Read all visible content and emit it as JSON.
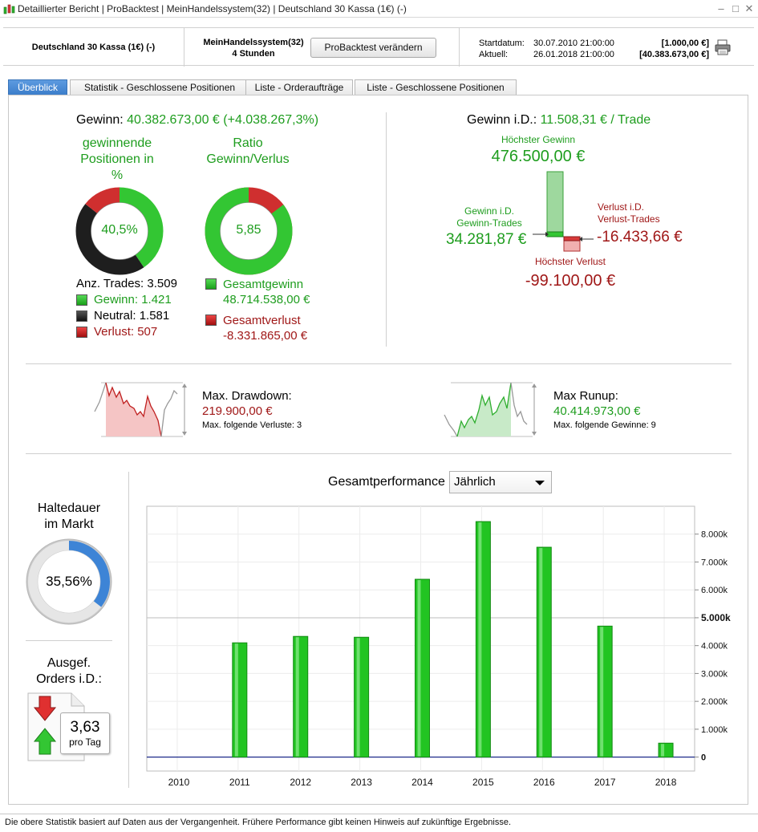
{
  "window": {
    "title": "Detaillierter Bericht | ProBacktest | MeinHandelssystem(32) | Deutschland 30 Kassa (1€) (-)"
  },
  "header": {
    "instrument": "Deutschland 30 Kassa (1€) (-)",
    "system_name": "MeinHandelssystem(32)",
    "timeframe": "4 Stunden",
    "change_button": "ProBacktest verändern",
    "start_label": "Startdatum:",
    "start_date": "30.07.2010 21:00:00",
    "start_amount": "[1.000,00 €]",
    "current_label": "Aktuell:",
    "current_date": "26.01.2018 21:00:00",
    "current_amount": "[40.383.673,00 €]"
  },
  "tabs": [
    {
      "label": "Überblick",
      "active": true
    },
    {
      "label": "Statistik - Geschlossene Positionen",
      "active": false
    },
    {
      "label": "Liste - Orderaufträge",
      "active": false
    },
    {
      "label": "Liste - Geschlossene Positionen",
      "active": false
    }
  ],
  "overview": {
    "profit_label": "Gewinn:",
    "profit_value": "40.382.673,00 € (+4.038.267,3%)",
    "win_pct_title_1": "gewinnende",
    "win_pct_title_2": "Positionen in",
    "win_pct_title_3": "%",
    "win_pct_value": "40,5%",
    "ratio_title_1": "Ratio",
    "ratio_title_2": "Gewinn/Verlus",
    "ratio_value": "5,85",
    "trades_label": "Anz. Trades: 3.509",
    "winners": "Gewinn: 1.421",
    "neutral": "Neutral: 1.581",
    "losers": "Verlust: 507",
    "total_gain_label": "Gesamtgewinn",
    "total_gain_value": "48.714.538,00 €",
    "total_loss_label": "Gesamtverlust",
    "total_loss_value": "-8.331.865,00 €",
    "avg_label": "Gewinn i.D.:",
    "avg_value": "11.508,31 € / Trade",
    "best_label": "Höchster Gewinn",
    "best_value": "476.500,00 €",
    "avg_win_label_1": "Gewinn i.D.",
    "avg_win_label_2": "Gewinn-Trades",
    "avg_win_value": "34.281,87 €",
    "avg_loss_label_1": "Verlust i.D.",
    "avg_loss_label_2": "Verlust-Trades",
    "avg_loss_value": "-16.433,66 €",
    "worst_label": "Höchster Verlust",
    "worst_value": "-99.100,00 €"
  },
  "donuts": {
    "win_pct": 40.5,
    "neutral_pct": 45.06,
    "loss_pct": 14.44,
    "ratio_gain_pct": 85.4,
    "market_time_pct": 35.56
  },
  "drawdown": {
    "label": "Max. Drawdown:",
    "value": "219.900,00 €",
    "sub": "Max. folgende Verluste: 3"
  },
  "runup": {
    "label": "Max Runup:",
    "value": "40.414.973,00 €",
    "sub": "Max. folgende Gewinne: 9"
  },
  "holding": {
    "title_1": "Haltedauer",
    "title_2": "im Markt",
    "value": "35,56%"
  },
  "orders": {
    "title_1": "Ausgef.",
    "title_2": "Orders i.D.:",
    "value": "3,63",
    "unit": "pro Tag"
  },
  "performance": {
    "label": "Gesamtperformance",
    "period": "Jährlich"
  },
  "colors": {
    "green": "#1e9d1e",
    "red": "#a01818",
    "accent": "#3a7cc9",
    "bar": "#22c422"
  },
  "chart_data": {
    "type": "bar",
    "categories": [
      "2010",
      "2011",
      "2012",
      "2013",
      "2014",
      "2015",
      "2016",
      "2017",
      "2018"
    ],
    "values": [
      0,
      4100,
      4330,
      4300,
      6380,
      8450,
      7530,
      4700,
      500
    ],
    "y_ticks": [
      0,
      1000,
      2000,
      3000,
      4000,
      5000,
      6000,
      7000,
      8000
    ],
    "y_tick_labels": [
      "0",
      "1.000k",
      "2.000k",
      "3.000k",
      "4.000k",
      "5.000k",
      "6.000k",
      "7.000k",
      "8.000k"
    ],
    "ylim": [
      -500,
      9000
    ],
    "title": "Gesamtperformance",
    "grid": true
  }
}
